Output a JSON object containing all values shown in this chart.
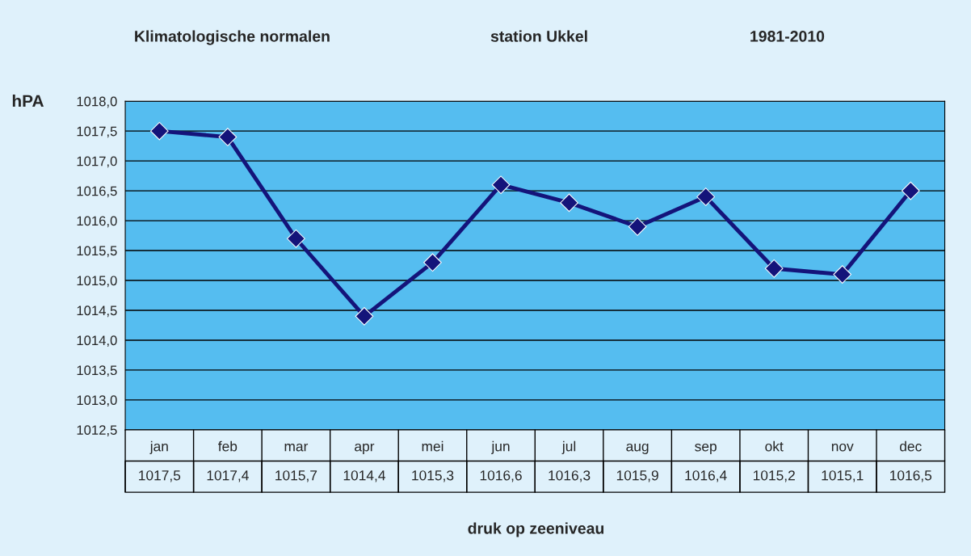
{
  "chart_data": {
    "type": "line",
    "title": "Klimatologische normalen",
    "subtitle": "station Ukkel",
    "annotations": [
      "1981-2010"
    ],
    "ylabel": "hPA",
    "xlabel": "druk op zeeniveau",
    "categories": [
      "jan",
      "feb",
      "mar",
      "apr",
      "mei",
      "jun",
      "jul",
      "aug",
      "sep",
      "okt",
      "nov",
      "dec"
    ],
    "series": [
      {
        "color": "#14147a",
        "values": [
          1017.5,
          1017.4,
          1015.7,
          1014.4,
          1015.3,
          1016.6,
          1016.3,
          1015.9,
          1016.4,
          1015.2,
          1015.1,
          1016.5
        ],
        "value_labels": [
          "1017,5",
          "1017,4",
          "1015,7",
          "1014,4",
          "1015,3",
          "1016,6",
          "1016,3",
          "1015,9",
          "1016,4",
          "1015,2",
          "1015,1",
          "1016,5"
        ]
      }
    ],
    "ylim": [
      1012.5,
      1018
    ],
    "yticks": [
      {
        "value": 1012.5,
        "label": "1012,5"
      },
      {
        "value": 1013,
        "label": "1013,0"
      },
      {
        "value": 1013.5,
        "label": "1013,5"
      },
      {
        "value": 1014,
        "label": "1014,0"
      },
      {
        "value": 1014.5,
        "label": "1014,5"
      },
      {
        "value": 1015,
        "label": "1015,0"
      },
      {
        "value": 1015.5,
        "label": "1015,5"
      },
      {
        "value": 1016,
        "label": "1016,0"
      },
      {
        "value": 1016.5,
        "label": "1016,5"
      },
      {
        "value": 1017,
        "label": "1017,0"
      },
      {
        "value": 1017.5,
        "label": "1017,5"
      },
      {
        "value": 1018,
        "label": "1018,0"
      }
    ],
    "grid": "y",
    "marker": "diamond",
    "line_style": "solid"
  }
}
